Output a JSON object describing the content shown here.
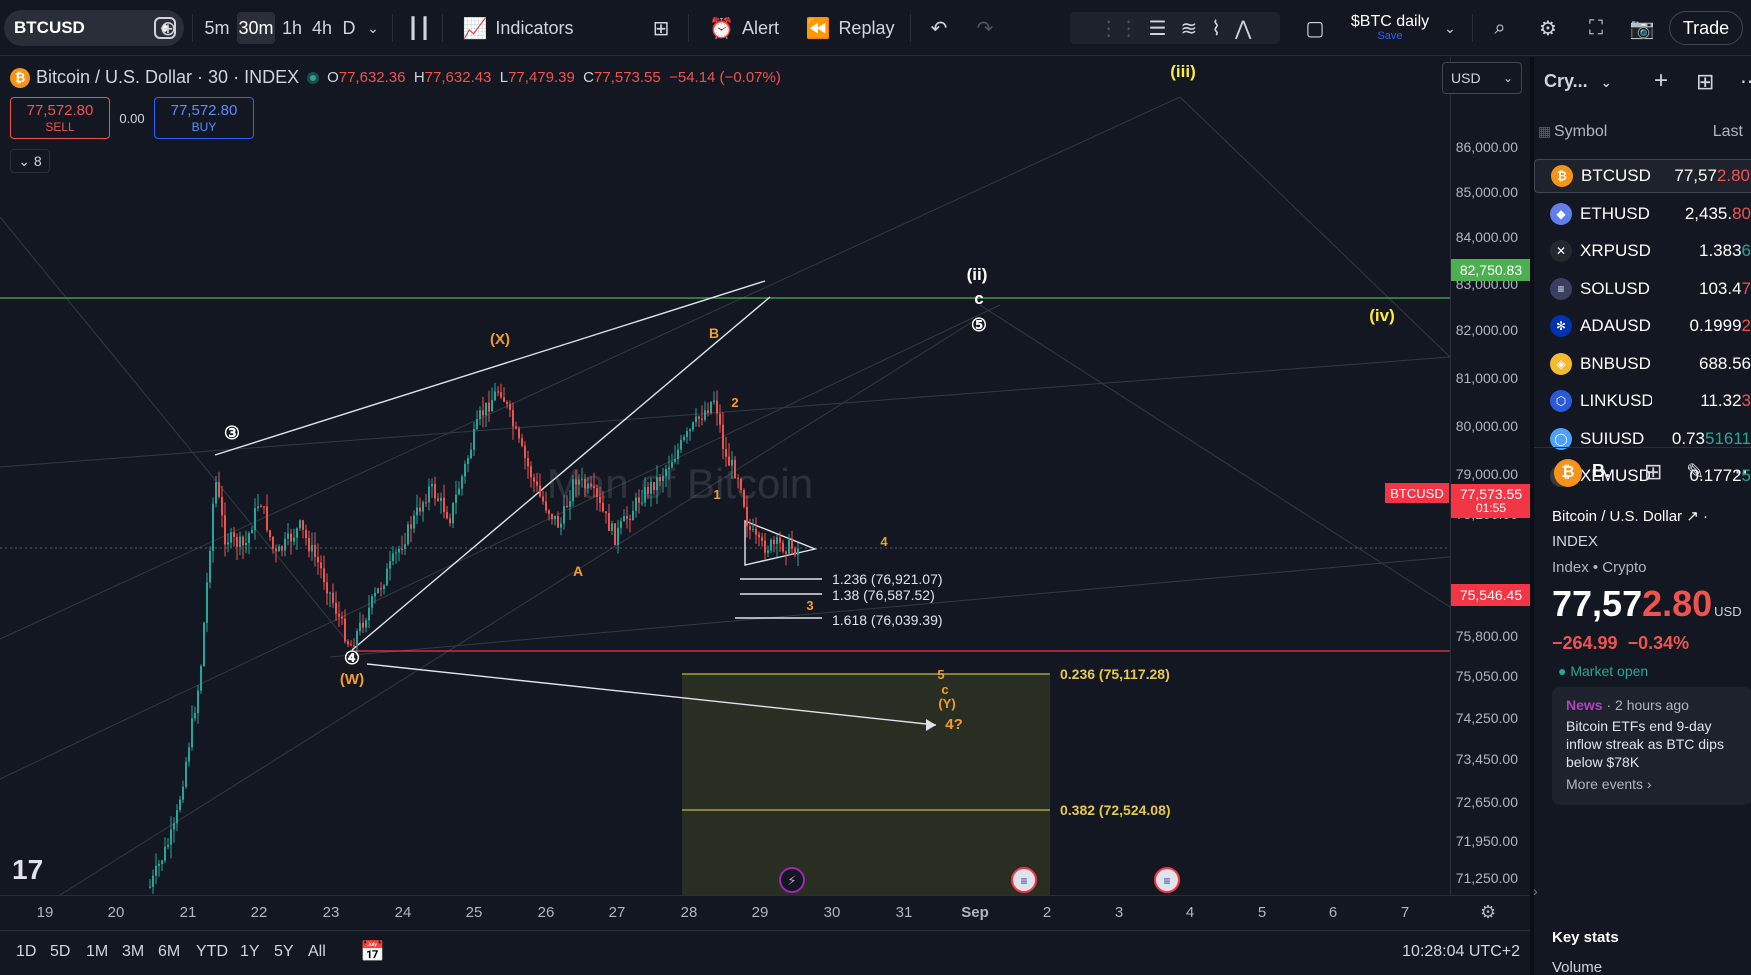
{
  "toolbar": {
    "symbol": "BTCUSD",
    "intervals": [
      "5m",
      "30m",
      "1h",
      "4h",
      "D"
    ],
    "active_interval": "30m",
    "indicators_label": "Indicators",
    "alert_label": "Alert",
    "replay_label": "Replay",
    "layout_name": "$BTC daily",
    "layout_save": "Save",
    "trade_label": "Trade"
  },
  "legend": {
    "title": "Bitcoin / U.S. Dollar · 30 · INDEX",
    "open_k": "O",
    "open": "77,632.36",
    "high_k": "H",
    "high": "77,632.43",
    "low_k": "L",
    "low": "77,479.39",
    "close_k": "C",
    "close": "77,573.55",
    "change": "−54.14 (−0.07%)"
  },
  "trade": {
    "sell_price": "77,572.80",
    "sell_label": "SELL",
    "spread": "0.00",
    "buy_price": "77,572.80",
    "buy_label": "BUY"
  },
  "indicator_toggle": "8",
  "currency": "USD",
  "watermark": "Man of Bitcoin",
  "price_axis": {
    "labels": [
      "86,000.00",
      "85,000.00",
      "84,000.00",
      "83,000.00",
      "82,000.00",
      "81,000.00",
      "80,000.00",
      "79,000.00",
      "78,200.00",
      "76,600.00",
      "75,800.00",
      "75,050.00",
      "74,250.00",
      "73,450.00",
      "72,650.00",
      "71,950.00",
      "71,250.00"
    ],
    "tag_resistance": "82,750.83",
    "tag_current_symbol": "BTCUSD",
    "tag_current": "77,573.55",
    "tag_countdown": "01:55",
    "tag_support": "75,546.45"
  },
  "time_axis": [
    "19",
    "20",
    "21",
    "22",
    "23",
    "24",
    "25",
    "26",
    "27",
    "28",
    "29",
    "30",
    "31",
    "Sep",
    "2",
    "3",
    "4",
    "5",
    "6",
    "7"
  ],
  "annotations": {
    "wave_iii": "(iii)",
    "wave_ii": "(ii)",
    "wave_iv": "(iv)",
    "c_white": "c",
    "five_circle": "⑤",
    "three_circle": "③",
    "four_circle": "④",
    "x_label": "(X)",
    "w_label": "(W)",
    "b_label": "B",
    "a_label": "A",
    "n1": "1",
    "n2": "2",
    "n3": "3",
    "n4": "4",
    "n5": "5",
    "c_orange": "c",
    "y_label": "(Y)",
    "four_q": "4?",
    "fib_1236": "1.236 (76,921.07)",
    "fib_138": "1.38 (76,587.52)",
    "fib_1618": "1.618 (76,039.39)",
    "fib_0236": "0.236 (75,117.28)",
    "fib_0382": "0.382 (72,524.08)"
  },
  "bottom": {
    "ranges": [
      "1D",
      "5D",
      "1M",
      "3M",
      "6M",
      "YTD",
      "1Y",
      "5Y",
      "All"
    ],
    "clock": "10:28:04 UTC+2"
  },
  "watchlist": {
    "title": "Cry...",
    "col_symbol": "Symbol",
    "col_last": "Last",
    "rows": [
      {
        "symbol": "BTCUSD",
        "last_main": "77,57",
        "last_tail": "2.80",
        "dir": "dn",
        "color": "#f7931a",
        "icon": "₿"
      },
      {
        "symbol": "ETHUSD",
        "last_main": "2,435.",
        "last_tail": "80",
        "dir": "dn",
        "color": "#627eea",
        "icon": "◆"
      },
      {
        "symbol": "XRPUSD",
        "last_main": "1.383",
        "last_tail": "6",
        "dir": "up",
        "color": "#23292f",
        "icon": "✕"
      },
      {
        "symbol": "SOLUSD",
        "last_main": "103.4",
        "last_tail": "7",
        "dir": "dn",
        "color": "#3a3f62",
        "icon": "≡"
      },
      {
        "symbol": "ADAUSD",
        "last_main": "0.1999",
        "last_tail": "2",
        "dir": "dn",
        "color": "#0033ad",
        "icon": "✻"
      },
      {
        "symbol": "BNBUSD",
        "last_main": "688.5",
        "last_tail": "6",
        "dir": "none",
        "color": "#f3ba2f",
        "icon": "◈"
      },
      {
        "symbol": "LINKUSD",
        "last_main": "11.32",
        "last_tail": "3",
        "dir": "dn",
        "color": "#2a5ada",
        "icon": "⬡"
      },
      {
        "symbol": "SUIUSD",
        "last_main": "0.73",
        "last_tail": "51611",
        "dir": "up",
        "color": "#4da2ff",
        "icon": "◯"
      },
      {
        "symbol": "XLMUSD",
        "last_main": "0.1772",
        "last_tail": "5",
        "dir": "up",
        "color": "#3a3a3a",
        "icon": "⊘"
      }
    ]
  },
  "detail": {
    "short": "B.",
    "name": "Bitcoin / U.S. Dollar",
    "exchange": "INDEX",
    "type": "Index • Crypto",
    "price_main": "77,57",
    "price_tail": "2.80",
    "price_unit": "USD",
    "change": "−264.99  −0.34%",
    "market_status": "Market open",
    "news_source": "News",
    "news_time": "· 2 hours ago",
    "news_headline": "Bitcoin ETFs end 9-day inflow streak as BTC dips below $78K",
    "more_events": "More events ›",
    "key_stats": "Key stats",
    "volume": "Volume"
  },
  "colors": {
    "bg": "#131722",
    "up": "#26a69a",
    "down": "#ef5350",
    "resistance_line": "#4caf50",
    "support_line": "#f23645",
    "annotation_orange": "#f59d29",
    "annotation_yellow": "#ffeb3b",
    "fib_zone": "#2e3323"
  }
}
